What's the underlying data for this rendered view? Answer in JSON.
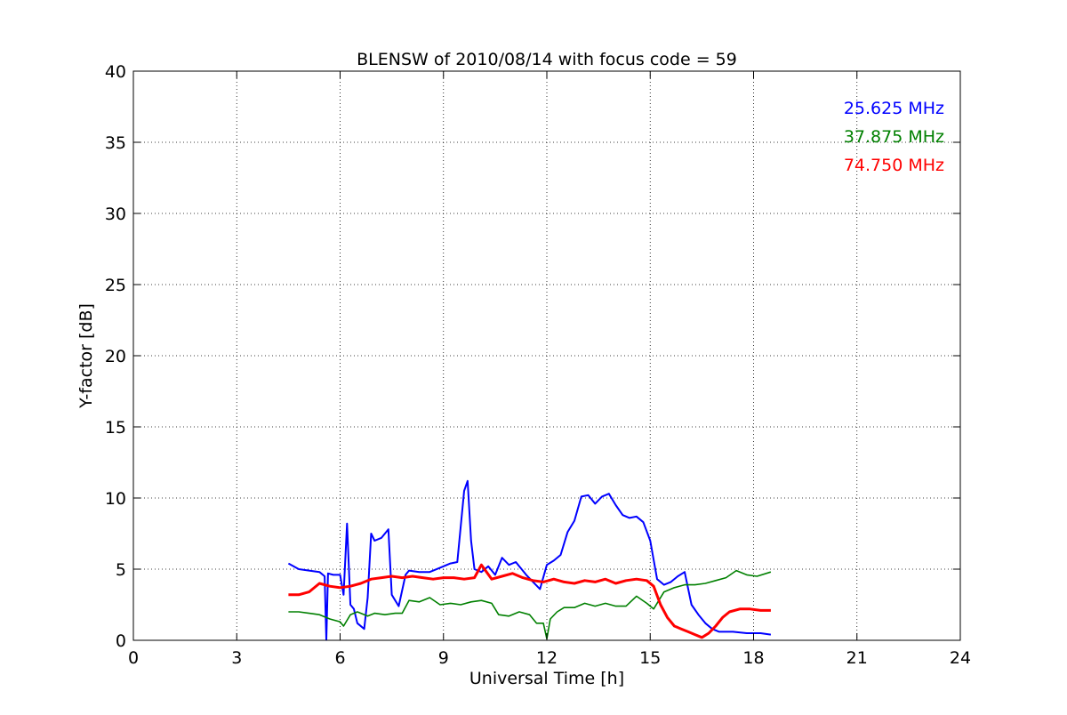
{
  "chart_data": {
    "type": "line",
    "title": "BLENSW of 2010/08/14 with focus code = 59",
    "xlabel": "Universal Time [h]",
    "ylabel": "Y-factor [dB]",
    "xlim": [
      0,
      24
    ],
    "ylim": [
      0,
      40
    ],
    "xticks": [
      0,
      3,
      6,
      9,
      12,
      15,
      18,
      21,
      24
    ],
    "yticks": [
      0,
      5,
      10,
      15,
      20,
      25,
      30,
      35,
      40
    ],
    "xtick_labels": [
      "0",
      "3",
      "6",
      "9",
      "12",
      "15",
      "18",
      "21",
      "24"
    ],
    "ytick_labels": [
      "0",
      "5",
      "10",
      "15",
      "20",
      "25",
      "30",
      "35",
      "40"
    ],
    "grid": true,
    "legend": "top-right",
    "series": [
      {
        "name": "25.625 MHz",
        "color": "#0000ff",
        "x": [
          4.5,
          4.8,
          5.1,
          5.4,
          5.55,
          5.6,
          5.65,
          5.8,
          6.0,
          6.1,
          6.2,
          6.3,
          6.4,
          6.5,
          6.7,
          6.8,
          6.9,
          7.0,
          7.2,
          7.4,
          7.5,
          7.7,
          7.9,
          8.0,
          8.3,
          8.6,
          8.9,
          9.2,
          9.4,
          9.6,
          9.7,
          9.8,
          9.9,
          10.1,
          10.3,
          10.5,
          10.7,
          10.9,
          11.1,
          11.4,
          11.6,
          11.8,
          12.0,
          12.2,
          12.4,
          12.6,
          12.8,
          13.0,
          13.2,
          13.4,
          13.6,
          13.8,
          14.0,
          14.2,
          14.4,
          14.6,
          14.8,
          15.0,
          15.2,
          15.4,
          15.6,
          15.8,
          16.0,
          16.2,
          16.4,
          16.6,
          16.8,
          17.0,
          17.4,
          17.8,
          18.2,
          18.5
        ],
        "y": [
          5.4,
          5.0,
          4.9,
          4.8,
          4.5,
          0.0,
          4.7,
          4.6,
          4.6,
          3.2,
          8.2,
          2.5,
          2.2,
          1.2,
          0.8,
          3.0,
          7.5,
          7.0,
          7.2,
          7.8,
          3.2,
          2.4,
          4.6,
          4.9,
          4.8,
          4.8,
          5.1,
          5.4,
          5.5,
          10.5,
          11.2,
          7.0,
          5.0,
          4.8,
          5.2,
          4.6,
          5.8,
          5.3,
          5.5,
          4.6,
          4.1,
          3.6,
          5.3,
          5.6,
          6.0,
          7.6,
          8.4,
          10.1,
          10.2,
          9.6,
          10.1,
          10.3,
          9.5,
          8.8,
          8.6,
          8.7,
          8.3,
          7.0,
          4.3,
          3.9,
          4.1,
          4.5,
          4.8,
          2.5,
          1.8,
          1.2,
          0.8,
          0.6,
          0.6,
          0.5,
          0.5,
          0.4
        ]
      },
      {
        "name": "37.875 MHz",
        "color": "#008000",
        "x": [
          4.5,
          4.8,
          5.1,
          5.4,
          5.7,
          6.0,
          6.1,
          6.3,
          6.5,
          6.8,
          7.0,
          7.3,
          7.6,
          7.8,
          8.0,
          8.3,
          8.6,
          8.9,
          9.2,
          9.5,
          9.8,
          10.1,
          10.4,
          10.6,
          10.9,
          11.2,
          11.5,
          11.7,
          11.9,
          12.0,
          12.1,
          12.3,
          12.5,
          12.8,
          13.1,
          13.4,
          13.7,
          14.0,
          14.3,
          14.6,
          14.9,
          15.1,
          15.4,
          15.7,
          16.0,
          16.3,
          16.6,
          16.9,
          17.2,
          17.5,
          17.8,
          18.1,
          18.5
        ],
        "y": [
          2.0,
          2.0,
          1.9,
          1.8,
          1.5,
          1.3,
          1.0,
          1.8,
          2.0,
          1.7,
          1.9,
          1.8,
          1.9,
          1.9,
          2.8,
          2.7,
          3.0,
          2.5,
          2.6,
          2.5,
          2.7,
          2.8,
          2.6,
          1.8,
          1.7,
          2.0,
          1.8,
          1.2,
          1.2,
          0.1,
          1.5,
          2.0,
          2.3,
          2.3,
          2.6,
          2.4,
          2.6,
          2.4,
          2.4,
          3.1,
          2.6,
          2.2,
          3.4,
          3.7,
          3.9,
          3.9,
          4.0,
          4.2,
          4.4,
          4.9,
          4.6,
          4.5,
          4.8
        ]
      },
      {
        "name": "74.750 MHz",
        "color": "#ff0000",
        "x": [
          4.5,
          4.8,
          5.1,
          5.4,
          5.7,
          6.0,
          6.3,
          6.6,
          6.9,
          7.2,
          7.5,
          7.8,
          8.1,
          8.4,
          8.7,
          9.0,
          9.3,
          9.6,
          9.9,
          10.1,
          10.4,
          10.7,
          11.0,
          11.3,
          11.6,
          11.9,
          12.2,
          12.5,
          12.8,
          13.1,
          13.4,
          13.7,
          14.0,
          14.3,
          14.6,
          14.9,
          15.1,
          15.3,
          15.5,
          15.7,
          15.9,
          16.1,
          16.3,
          16.5,
          16.7,
          16.9,
          17.1,
          17.3,
          17.6,
          17.9,
          18.2,
          18.5
        ],
        "y": [
          3.2,
          3.2,
          3.4,
          4.0,
          3.8,
          3.7,
          3.8,
          4.0,
          4.3,
          4.4,
          4.5,
          4.4,
          4.5,
          4.4,
          4.3,
          4.4,
          4.4,
          4.3,
          4.4,
          5.3,
          4.3,
          4.5,
          4.7,
          4.4,
          4.2,
          4.1,
          4.3,
          4.1,
          4.0,
          4.2,
          4.1,
          4.3,
          4.0,
          4.2,
          4.3,
          4.2,
          3.8,
          2.5,
          1.6,
          1.0,
          0.8,
          0.6,
          0.4,
          0.2,
          0.5,
          1.0,
          1.6,
          2.0,
          2.2,
          2.2,
          2.1,
          2.1
        ]
      }
    ]
  }
}
